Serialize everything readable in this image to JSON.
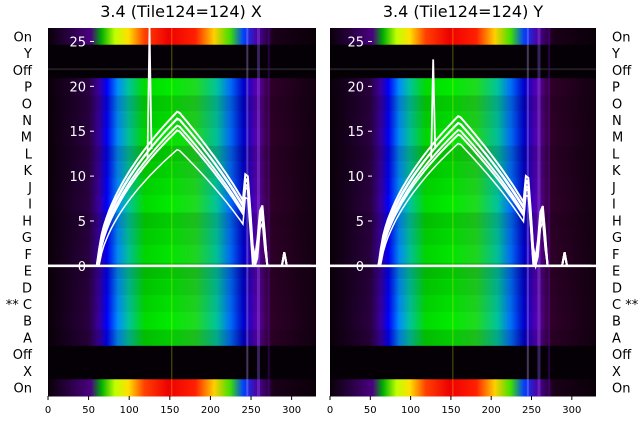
{
  "chart_data": [
    {
      "type": "heatmap",
      "title": "3.4 (Tile124=124) X",
      "side": "left",
      "xlim": [
        0,
        330
      ],
      "ylim": [
        -14.5,
        26.5
      ],
      "x_ticks": [
        "0",
        "50",
        "100",
        "150",
        "200",
        "250",
        "300"
      ],
      "y_ticks": [
        "0",
        "5",
        "10",
        "15",
        "20",
        "25"
      ],
      "row_labels": [
        "On",
        "Y",
        "Off",
        "P",
        "O",
        "N",
        "M",
        "L",
        "K",
        "J",
        "I",
        "H",
        "G",
        "F",
        "E",
        "D",
        "** C",
        "B",
        "A",
        "Off",
        "X",
        "On"
      ],
      "overlay_lines": {
        "description": "white spectra traces",
        "bandpass_peak": 16.5,
        "bandpass_peak_x": 160,
        "spike_x": 125,
        "spike_top": 26.5,
        "baseline": 0
      }
    },
    {
      "type": "heatmap",
      "title": "3.4 (Tile124=124) Y",
      "side": "right",
      "xlim": [
        0,
        330
      ],
      "ylim": [
        -14.5,
        26.5
      ],
      "x_ticks": [
        "0",
        "50",
        "100",
        "150",
        "200",
        "250",
        "300"
      ],
      "y_ticks": [
        "0",
        "5",
        "10",
        "15",
        "20",
        "25"
      ],
      "row_labels": [
        "On",
        "Y",
        "Off",
        "P",
        "O",
        "N",
        "M",
        "L",
        "K",
        "J",
        "I",
        "H",
        "G",
        "F",
        "E",
        "D",
        "C **",
        "B",
        "A",
        "Off",
        "X",
        "On"
      ],
      "overlay_lines": {
        "description": "white spectra traces",
        "bandpass_peak": 16,
        "bandpass_peak_x": 160,
        "spike_x": 128,
        "spike_top": 23,
        "baseline": 0
      }
    }
  ],
  "colors": {
    "trace": "#ffffff",
    "background_rows": "#000000",
    "colormap": [
      "#1a001a",
      "#5a0080",
      "#0000ff",
      "#0090ff",
      "#00c8a0",
      "#00e000",
      "#b4ff00",
      "#ffff00",
      "#ff8000",
      "#ff0000"
    ]
  }
}
